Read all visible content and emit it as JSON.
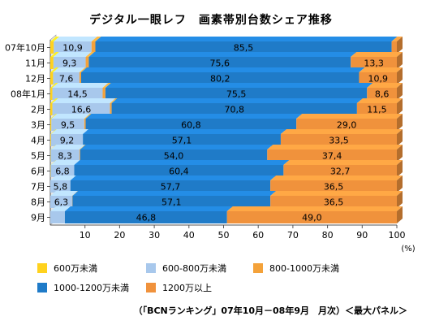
{
  "chart_data": {
    "type": "bar",
    "orientation": "horizontal",
    "stacked": true,
    "title": "デジタル一眼レフ　画素帯別台数シェア推移",
    "categories": [
      "07年10月",
      "11月",
      "12月",
      "08年1月",
      "2月",
      "3月",
      "4月",
      "5月",
      "6月",
      "7月",
      "8月",
      "9月"
    ],
    "series": [
      {
        "name": "600万未満",
        "color": "#ffd21e",
        "values": [
          1.0,
          0.9,
          0.8,
          0.6,
          0.6,
          0.3,
          0.2,
          0.1,
          0.1,
          0.0,
          0.0,
          0.0
        ]
      },
      {
        "name": "600-800万未満",
        "color": "#a8c8ec",
        "values": [
          10.9,
          9.3,
          7.6,
          14.5,
          16.6,
          9.5,
          9.2,
          8.3,
          6.8,
          5.8,
          6.3,
          4.2
        ]
      },
      {
        "name": "800-1000万未満",
        "color": "#f4a23a",
        "values": [
          1.1,
          0.9,
          0.5,
          0.8,
          0.5,
          0.4,
          0.0,
          0.2,
          0.0,
          0.0,
          0.1,
          0.0
        ]
      },
      {
        "name": "1000-1200万未満",
        "color": "#1f7bc8",
        "values": [
          85.5,
          75.6,
          80.2,
          75.5,
          70.8,
          60.8,
          57.1,
          54.0,
          60.4,
          57.7,
          57.1,
          46.8
        ]
      },
      {
        "name": "1200万以上",
        "color": "#f0923c",
        "values": [
          1.5,
          13.3,
          10.9,
          8.6,
          11.5,
          29.0,
          33.5,
          37.4,
          32.7,
          36.5,
          36.5,
          49.0
        ]
      }
    ],
    "data_labels": [
      [
        "10,9",
        "85,5",
        ""
      ],
      [
        "9,3",
        "75,6",
        "13,3"
      ],
      [
        "7,6",
        "80,2",
        "10,9"
      ],
      [
        "14,5",
        "75,5",
        "8,6"
      ],
      [
        "16,6",
        "70,8",
        "11,5"
      ],
      [
        "9,5",
        "60,8",
        "29,0"
      ],
      [
        "9,2",
        "57,1",
        "33,5"
      ],
      [
        "8,3",
        "54,0",
        "37,4"
      ],
      [
        "6,8",
        "60,4",
        "32,7"
      ],
      [
        "5,8",
        "57,7",
        "36,5"
      ],
      [
        "6,3",
        "57,1",
        "36,5"
      ],
      [
        "",
        "46,8",
        "49,0"
      ]
    ],
    "xlim": [
      0,
      100
    ],
    "xticks": [
      10,
      20,
      30,
      40,
      50,
      60,
      70,
      80,
      90,
      100
    ],
    "xlabel": "(%)",
    "ylabel": "",
    "grid": false,
    "legend_position": "bottom"
  },
  "source_note": "（「BCNランキング」07年10月－08年9月　月次）＜最大パネル＞"
}
